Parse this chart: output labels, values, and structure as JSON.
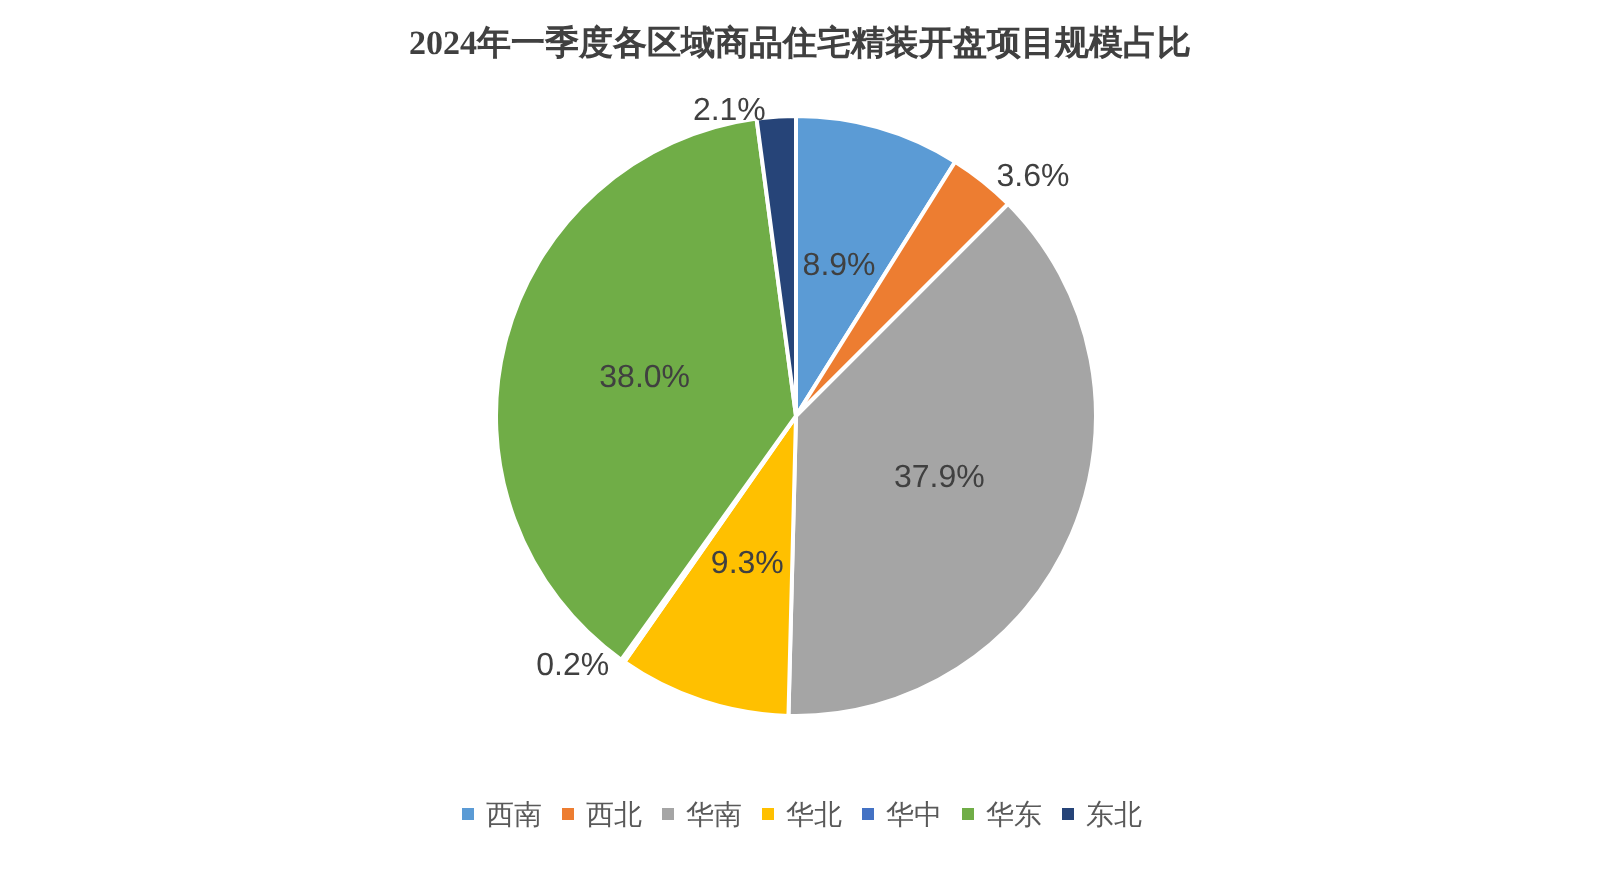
{
  "chart_data": {
    "type": "pie",
    "title": "2024年一季度各区域商品住宅精装开盘项目规模占比",
    "categories": [
      "西南",
      "西北",
      "华南",
      "华北",
      "华中",
      "华东",
      "东北"
    ],
    "values": [
      8.9,
      3.6,
      37.9,
      9.3,
      0.2,
      38.0,
      2.1
    ],
    "colors": [
      "#5b9bd5",
      "#ed7d31",
      "#a5a5a5",
      "#ffc000",
      "#4472c4",
      "#70ad47",
      "#264478"
    ],
    "value_labels": [
      "8.9%",
      "3.6%",
      "37.9%",
      "9.3%",
      "0.2%",
      "38.0%",
      "2.1%"
    ],
    "legend": "bottom"
  }
}
